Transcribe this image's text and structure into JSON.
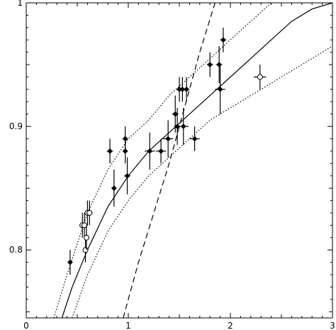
{
  "chart_data": {
    "type": "scatter",
    "title": "",
    "xlabel": "",
    "ylabel": "",
    "xlim": [
      0,
      3
    ],
    "ylim": [
      0.745,
      1.0
    ],
    "grid": false,
    "x_ticks": [
      {
        "value": 0,
        "label": "0"
      },
      {
        "value": 1,
        "label": "1"
      },
      {
        "value": 2,
        "label": "2"
      },
      {
        "value": 3,
        "label": "3"
      }
    ],
    "y_ticks": [
      {
        "value": 0.8,
        "label": "0.8"
      },
      {
        "value": 0.9,
        "label": "0.9"
      },
      {
        "value": 1.0,
        "label": "1"
      }
    ],
    "series": [
      {
        "marker": "filled-diamond",
        "points": [
          {
            "x": 0.43,
            "y": 0.79,
            "xerr": 0,
            "yerr": 0.01
          },
          {
            "x": 0.82,
            "y": 0.88,
            "xerr": 0.03,
            "yerr": 0.01
          },
          {
            "x": 0.86,
            "y": 0.85,
            "xerr": 0.02,
            "yerr": 0.015
          },
          {
            "x": 0.97,
            "y": 0.89,
            "xerr": 0.02,
            "yerr": 0.01
          },
          {
            "x": 0.97,
            "y": 0.88,
            "xerr": 0.02,
            "yerr": 0.01
          },
          {
            "x": 0.99,
            "y": 0.86,
            "xerr": 0.03,
            "yerr": 0.015
          },
          {
            "x": 1.21,
            "y": 0.88,
            "xerr": 0.05,
            "yerr": 0.015
          },
          {
            "x": 1.32,
            "y": 0.88,
            "xerr": 0.05,
            "yerr": 0.01
          },
          {
            "x": 1.39,
            "y": 0.89,
            "xerr": 0.05,
            "yerr": 0.015
          },
          {
            "x": 1.46,
            "y": 0.91,
            "xerr": 0.03,
            "yerr": 0.015
          },
          {
            "x": 1.48,
            "y": 0.9,
            "xerr": 0.03,
            "yerr": 0.015
          },
          {
            "x": 1.5,
            "y": 0.93,
            "xerr": 0.03,
            "yerr": 0.01
          },
          {
            "x": 1.53,
            "y": 0.93,
            "xerr": 0.03,
            "yerr": 0.01
          },
          {
            "x": 1.54,
            "y": 0.9,
            "xerr": 0.05,
            "yerr": 0.015
          },
          {
            "x": 1.57,
            "y": 0.93,
            "xerr": 0.03,
            "yerr": 0.01
          },
          {
            "x": 1.65,
            "y": 0.89,
            "xerr": 0.05,
            "yerr": 0.01
          },
          {
            "x": 1.8,
            "y": 0.95,
            "xerr": 0.03,
            "yerr": 0.01
          },
          {
            "x": 1.89,
            "y": 0.95,
            "xerr": 0.03,
            "yerr": 0.015
          },
          {
            "x": 1.9,
            "y": 0.93,
            "xerr": 0.05,
            "yerr": 0.02
          },
          {
            "x": 1.93,
            "y": 0.97,
            "xerr": 0.03,
            "yerr": 0.01
          }
        ]
      },
      {
        "marker": "open-circle",
        "points": [
          {
            "x": 0.55,
            "y": 0.82,
            "xerr": 0.03,
            "yerr": 0.01
          },
          {
            "x": 0.57,
            "y": 0.82,
            "xerr": 0.03,
            "yerr": 0.01
          },
          {
            "x": 0.58,
            "y": 0.8,
            "xerr": 0.02,
            "yerr": 0.01
          },
          {
            "x": 0.59,
            "y": 0.81,
            "xerr": 0.02,
            "yerr": 0.01
          },
          {
            "x": 0.6,
            "y": 0.83,
            "xerr": 0.02,
            "yerr": 0.01
          },
          {
            "x": 0.62,
            "y": 0.83,
            "xerr": 0.03,
            "yerr": 0.01
          },
          {
            "x": 2.29,
            "y": 0.94,
            "xerr": 0.06,
            "yerr": 0.01
          }
        ]
      }
    ],
    "curves": [
      {
        "style": "solid",
        "points": [
          [
            0.35,
            0.745
          ],
          [
            0.45,
            0.77
          ],
          [
            0.6,
            0.8
          ],
          [
            0.8,
            0.835
          ],
          [
            1.0,
            0.86
          ],
          [
            1.2,
            0.88
          ],
          [
            1.4,
            0.895
          ],
          [
            1.6,
            0.91
          ],
          [
            1.8,
            0.925
          ],
          [
            2.0,
            0.94
          ],
          [
            2.2,
            0.955
          ],
          [
            2.4,
            0.97
          ],
          [
            2.6,
            0.985
          ],
          [
            2.8,
            0.995
          ],
          [
            3.0,
            1.0
          ]
        ]
      },
      {
        "style": "dotted",
        "points": [
          [
            0.27,
            0.745
          ],
          [
            0.4,
            0.78
          ],
          [
            0.6,
            0.83
          ],
          [
            0.8,
            0.865
          ],
          [
            1.0,
            0.89
          ],
          [
            1.2,
            0.905
          ],
          [
            1.4,
            0.925
          ],
          [
            1.6,
            0.94
          ],
          [
            1.8,
            0.955
          ],
          [
            2.0,
            0.97
          ],
          [
            2.2,
            0.985
          ],
          [
            2.4,
            1.0
          ]
        ]
      },
      {
        "style": "dotted",
        "points": [
          [
            0.45,
            0.745
          ],
          [
            0.6,
            0.78
          ],
          [
            0.8,
            0.815
          ],
          [
            1.0,
            0.84
          ],
          [
            1.2,
            0.86
          ],
          [
            1.4,
            0.875
          ],
          [
            1.6,
            0.89
          ],
          [
            1.8,
            0.905
          ],
          [
            2.0,
            0.915
          ],
          [
            2.2,
            0.925
          ],
          [
            2.4,
            0.935
          ],
          [
            2.6,
            0.945
          ],
          [
            2.8,
            0.955
          ],
          [
            3.0,
            0.965
          ]
        ]
      },
      {
        "style": "dashed",
        "points": [
          [
            0.95,
            0.745
          ],
          [
            1.1,
            0.79
          ],
          [
            1.25,
            0.83
          ],
          [
            1.4,
            0.87
          ],
          [
            1.55,
            0.915
          ],
          [
            1.7,
            0.96
          ],
          [
            1.85,
            1.0
          ]
        ]
      }
    ]
  }
}
